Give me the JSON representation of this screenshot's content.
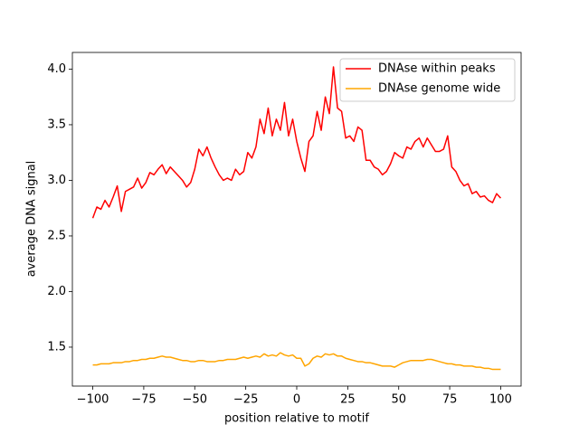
{
  "chart_data": {
    "type": "line",
    "x_label": "position relative to motif",
    "y_label": "average DNA signal",
    "x": [
      -100,
      -98,
      -96,
      -94,
      -92,
      -90,
      -88,
      -86,
      -84,
      -82,
      -80,
      -78,
      -76,
      -74,
      -72,
      -70,
      -68,
      -66,
      -64,
      -62,
      -60,
      -58,
      -56,
      -54,
      -52,
      -50,
      -48,
      -46,
      -44,
      -42,
      -40,
      -38,
      -36,
      -34,
      -32,
      -30,
      -28,
      -26,
      -24,
      -22,
      -20,
      -18,
      -16,
      -14,
      -12,
      -10,
      -8,
      -6,
      -4,
      -2,
      0,
      2,
      4,
      6,
      8,
      10,
      12,
      14,
      16,
      18,
      20,
      22,
      24,
      26,
      28,
      30,
      32,
      34,
      36,
      38,
      40,
      42,
      44,
      46,
      48,
      50,
      52,
      54,
      56,
      58,
      60,
      62,
      64,
      66,
      68,
      70,
      72,
      74,
      76,
      78,
      80,
      82,
      84,
      86,
      88,
      90,
      92,
      94,
      96,
      98,
      100
    ],
    "series": [
      {
        "name": "DNAse within peaks",
        "color": "#ff0000",
        "values": [
          2.66,
          2.76,
          2.74,
          2.82,
          2.76,
          2.85,
          2.95,
          2.72,
          2.9,
          2.92,
          2.94,
          3.02,
          2.93,
          2.98,
          3.07,
          3.05,
          3.1,
          3.14,
          3.06,
          3.12,
          3.08,
          3.04,
          3.0,
          2.94,
          2.98,
          3.1,
          3.28,
          3.22,
          3.3,
          3.2,
          3.12,
          3.05,
          3.0,
          3.02,
          3.0,
          3.1,
          3.05,
          3.08,
          3.25,
          3.2,
          3.3,
          3.55,
          3.42,
          3.65,
          3.4,
          3.55,
          3.45,
          3.7,
          3.4,
          3.55,
          3.35,
          3.2,
          3.08,
          3.35,
          3.4,
          3.62,
          3.45,
          3.75,
          3.6,
          4.02,
          3.65,
          3.62,
          3.38,
          3.4,
          3.35,
          3.48,
          3.45,
          3.18,
          3.18,
          3.12,
          3.1,
          3.05,
          3.08,
          3.15,
          3.25,
          3.22,
          3.2,
          3.3,
          3.28,
          3.35,
          3.38,
          3.3,
          3.38,
          3.32,
          3.26,
          3.26,
          3.28,
          3.4,
          3.12,
          3.08,
          3.0,
          2.95,
          2.97,
          2.88,
          2.9,
          2.85,
          2.86,
          2.82,
          2.8,
          2.88,
          2.84
        ]
      },
      {
        "name": "DNAse genome wide",
        "color": "#ffa500",
        "values": [
          1.34,
          1.34,
          1.35,
          1.35,
          1.35,
          1.36,
          1.36,
          1.36,
          1.37,
          1.37,
          1.38,
          1.38,
          1.39,
          1.39,
          1.4,
          1.4,
          1.41,
          1.42,
          1.41,
          1.41,
          1.4,
          1.39,
          1.38,
          1.38,
          1.37,
          1.37,
          1.38,
          1.38,
          1.37,
          1.37,
          1.37,
          1.38,
          1.38,
          1.39,
          1.39,
          1.39,
          1.4,
          1.41,
          1.4,
          1.41,
          1.42,
          1.41,
          1.44,
          1.42,
          1.43,
          1.42,
          1.45,
          1.43,
          1.42,
          1.43,
          1.4,
          1.4,
          1.33,
          1.35,
          1.4,
          1.42,
          1.41,
          1.44,
          1.43,
          1.44,
          1.42,
          1.42,
          1.4,
          1.39,
          1.38,
          1.37,
          1.37,
          1.36,
          1.36,
          1.35,
          1.34,
          1.33,
          1.33,
          1.33,
          1.32,
          1.34,
          1.36,
          1.37,
          1.38,
          1.38,
          1.38,
          1.38,
          1.39,
          1.39,
          1.38,
          1.37,
          1.36,
          1.35,
          1.35,
          1.34,
          1.34,
          1.33,
          1.33,
          1.33,
          1.32,
          1.32,
          1.31,
          1.31,
          1.3,
          1.3,
          1.3
        ]
      }
    ],
    "xlim": [
      -110,
      110
    ],
    "ylim": [
      1.15,
      4.15
    ],
    "xticks": [
      {
        "value": -100,
        "label": "−100"
      },
      {
        "value": -75,
        "label": "−75"
      },
      {
        "value": -50,
        "label": "−50"
      },
      {
        "value": -25,
        "label": "−25"
      },
      0,
      25,
      50,
      75,
      100
    ],
    "yticks": [
      1.5,
      {
        "value": 2,
        "label": "2.0"
      },
      2.5,
      {
        "value": 3,
        "label": "3.0"
      },
      3.5,
      {
        "value": 4,
        "label": "4.0"
      }
    ],
    "legend": "upper right"
  }
}
